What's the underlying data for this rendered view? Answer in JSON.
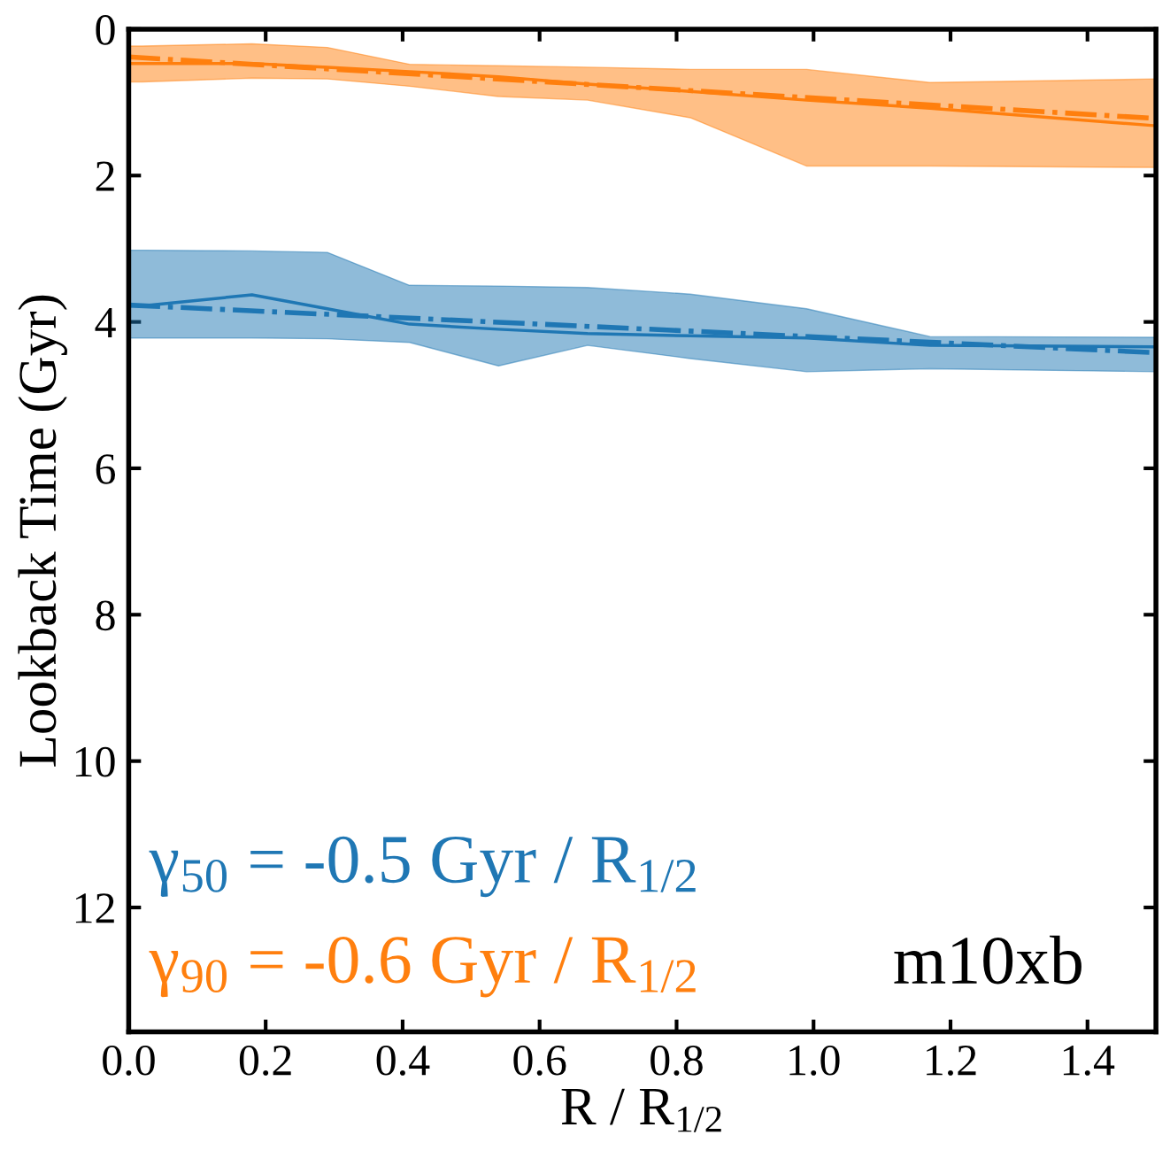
{
  "chart_data": {
    "type": "line",
    "xlabel": "R / R$_{1/2}$",
    "ylabel": "Lookback Time (Gyr)",
    "xlim": [
      0,
      1.5
    ],
    "xticks": [
      {
        "value": 0,
        "label": "0.0"
      },
      {
        "value": 0.2,
        "label": "0.2"
      },
      {
        "value": 0.4,
        "label": "0.4"
      },
      {
        "value": 0.6,
        "label": "0.6"
      },
      {
        "value": 0.8,
        "label": "0.8"
      },
      {
        "value": 1.0,
        "label": "1.0"
      },
      {
        "value": 1.2,
        "label": "1.2"
      },
      {
        "value": 1.4,
        "label": "1.4"
      }
    ],
    "ylim": [
      13.7,
      0
    ],
    "yticks": [
      0,
      2,
      4,
      6,
      8,
      10,
      12
    ],
    "grid": false,
    "legend": false,
    "series": [
      {
        "color": "#1f77b4",
        "line_style": "solid",
        "x": [
          0,
          0.02,
          0.18,
          0.29,
          0.41,
          0.54,
          0.67,
          0.82,
          0.99,
          1.17,
          1.5
        ],
        "values": [
          3.77,
          3.78,
          3.63,
          3.82,
          4.03,
          4.1,
          4.16,
          4.19,
          4.22,
          4.32,
          4.34
        ],
        "upper": [
          3.02,
          3.02,
          3.03,
          3.05,
          3.5,
          3.51,
          3.53,
          3.62,
          3.82,
          4.2,
          4.21
        ],
        "lower": [
          4.22,
          4.22,
          4.22,
          4.23,
          4.28,
          4.6,
          4.32,
          4.5,
          4.68,
          4.64,
          4.68
        ]
      },
      {
        "color": "#ff7f0e",
        "line_style": "solid",
        "x": [
          0,
          0.02,
          0.18,
          0.29,
          0.41,
          0.54,
          0.67,
          0.82,
          0.99,
          1.17,
          1.5
        ],
        "values": [
          0.47,
          0.47,
          0.47,
          0.52,
          0.58,
          0.65,
          0.75,
          0.85,
          0.97,
          1.08,
          1.32
        ],
        "upper": [
          0.23,
          0.23,
          0.2,
          0.25,
          0.48,
          0.5,
          0.52,
          0.55,
          0.55,
          0.73,
          0.68
        ],
        "lower": [
          0.72,
          0.72,
          0.67,
          0.68,
          0.78,
          0.92,
          0.97,
          1.21,
          1.87,
          1.87,
          1.89
        ]
      },
      {
        "color": "#1f77b4",
        "line_style": "dashdot",
        "x": [
          0,
          1.5
        ],
        "values": [
          3.77,
          4.42
        ]
      },
      {
        "color": "#ff7f0e",
        "line_style": "dashdot",
        "x": [
          0,
          1.5
        ],
        "values": [
          0.38,
          1.22
        ]
      }
    ],
    "annotations": [
      "γ$_{50}$ = -0.5 Gyr / R$_{1/2}$",
      "γ$_{90}$ = -0.6 Gyr / R$_{1/2}$",
      "m10xb"
    ]
  }
}
